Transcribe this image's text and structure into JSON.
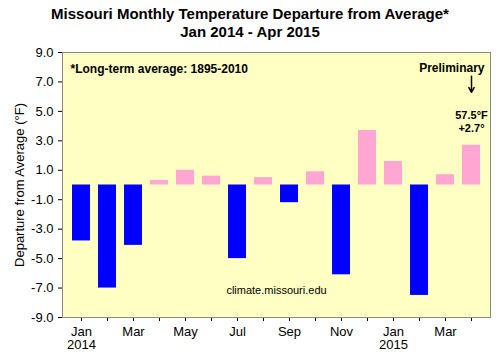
{
  "chart_data": {
    "type": "bar",
    "title": "Missouri Monthly Temperature Departure from Average*",
    "subtitle": "Jan 2014 - Apr 2015",
    "y_label": "Departure from Average (°F)",
    "categories": [
      "Jan 2014",
      null,
      "Mar",
      null,
      "May",
      null,
      "Jul",
      null,
      "Sep",
      null,
      "Nov",
      null,
      "Jan 2015",
      null,
      "Mar",
      null
    ],
    "values": [
      -3.8,
      -7.0,
      -4.1,
      0.3,
      1.0,
      0.6,
      -5.0,
      0.5,
      -1.2,
      0.9,
      -6.1,
      3.7,
      1.6,
      -7.5,
      0.7,
      2.7
    ],
    "colors": [
      "#0000ff",
      "#0000ff",
      "#0000ff",
      "#ffa6d2",
      "#ffa6d2",
      "#ffa6d2",
      "#0000ff",
      "#ffa6d2",
      "#0000ff",
      "#ffa6d2",
      "#0000ff",
      "#ffa6d2",
      "#ffa6d2",
      "#0000ff",
      "#ffa6d2",
      "#ffa6d2"
    ],
    "ylim": [
      -9,
      9
    ],
    "yticks": [
      {
        "value": -9,
        "label": "-9.0"
      },
      {
        "value": -7,
        "label": "-7.0"
      },
      {
        "value": -5,
        "label": "-5.0"
      },
      {
        "value": -3,
        "label": "-3.0"
      },
      {
        "value": -1,
        "label": "-1.0"
      },
      {
        "value": 1,
        "label": "1.0"
      },
      {
        "value": 3,
        "label": "3.0"
      },
      {
        "value": 5,
        "label": "5.0"
      },
      {
        "value": 7,
        "label": "7.0"
      },
      {
        "value": 9,
        "label": "9.0"
      }
    ],
    "grid": false,
    "footnote": "*Long-term average: 1895-2010",
    "annotations": [
      "Preliminary",
      "57.5°F",
      "+2.7°"
    ],
    "source": "climate.missouri.edu"
  }
}
